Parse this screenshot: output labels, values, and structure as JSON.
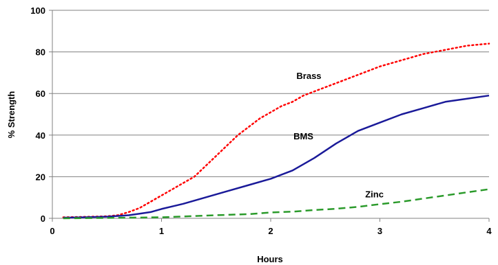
{
  "chart_data": {
    "type": "line",
    "title": "",
    "xlabel": "Hours",
    "ylabel": "% Strength",
    "xlim": [
      0,
      4
    ],
    "ylim": [
      0,
      100
    ],
    "xticks": [
      "0",
      "1",
      "2",
      "3",
      "4"
    ],
    "yticks": [
      "0",
      "20",
      "40",
      "60",
      "80",
      "100"
    ],
    "grid": "horizontal",
    "legend": "none",
    "series": [
      {
        "name": "Brass",
        "color": "#ff0000",
        "style": "dotted",
        "x": [
          0.1,
          0.3,
          0.5,
          0.6,
          0.7,
          0.8,
          0.9,
          1.0,
          1.1,
          1.2,
          1.3,
          1.4,
          1.5,
          1.6,
          1.7,
          1.8,
          1.9,
          2.0,
          2.1,
          2.2,
          2.3,
          2.5,
          2.7,
          2.9,
          3.0,
          3.2,
          3.4,
          3.6,
          3.8,
          4.0
        ],
        "y": [
          0.5,
          0.7,
          1.0,
          1.5,
          3.0,
          5.0,
          8.0,
          11.0,
          14.0,
          17.0,
          20.0,
          25.0,
          30.0,
          35.0,
          40.0,
          44.0,
          48.0,
          51.0,
          54.0,
          56.0,
          59.0,
          63.0,
          67.0,
          71.0,
          73.0,
          76.0,
          79.0,
          81.0,
          83.0,
          84.0
        ]
      },
      {
        "name": "BMS",
        "color": "#1a1a99",
        "style": "solid",
        "x": [
          0.1,
          0.3,
          0.5,
          0.7,
          0.8,
          0.9,
          1.0,
          1.2,
          1.4,
          1.6,
          1.8,
          2.0,
          2.2,
          2.4,
          2.6,
          2.8,
          3.0,
          3.2,
          3.4,
          3.6,
          3.8,
          4.0
        ],
        "y": [
          0.3,
          0.5,
          0.8,
          1.5,
          2.2,
          3.0,
          4.5,
          7.0,
          10.0,
          13.0,
          16.0,
          19.0,
          23.0,
          29.0,
          36.0,
          42.0,
          46.0,
          50.0,
          53.0,
          56.0,
          57.5,
          59.0
        ]
      },
      {
        "name": "Zinc",
        "color": "#2a9a2a",
        "style": "dashed",
        "x": [
          0.1,
          0.5,
          1.0,
          1.5,
          1.8,
          2.0,
          2.2,
          2.4,
          2.6,
          2.8,
          3.0,
          3.2,
          3.4,
          3.6,
          3.8,
          4.0
        ],
        "y": [
          0.0,
          0.2,
          0.5,
          1.5,
          2.0,
          2.8,
          3.2,
          4.0,
          4.6,
          5.5,
          6.8,
          8.0,
          9.5,
          11.0,
          12.5,
          14.0
        ]
      }
    ],
    "annotations": [
      {
        "text": "Brass",
        "x": 2.35,
        "y": 67
      },
      {
        "text": "BMS",
        "x": 2.3,
        "y": 38
      },
      {
        "text": "Zinc",
        "x": 2.95,
        "y": 10
      }
    ]
  }
}
